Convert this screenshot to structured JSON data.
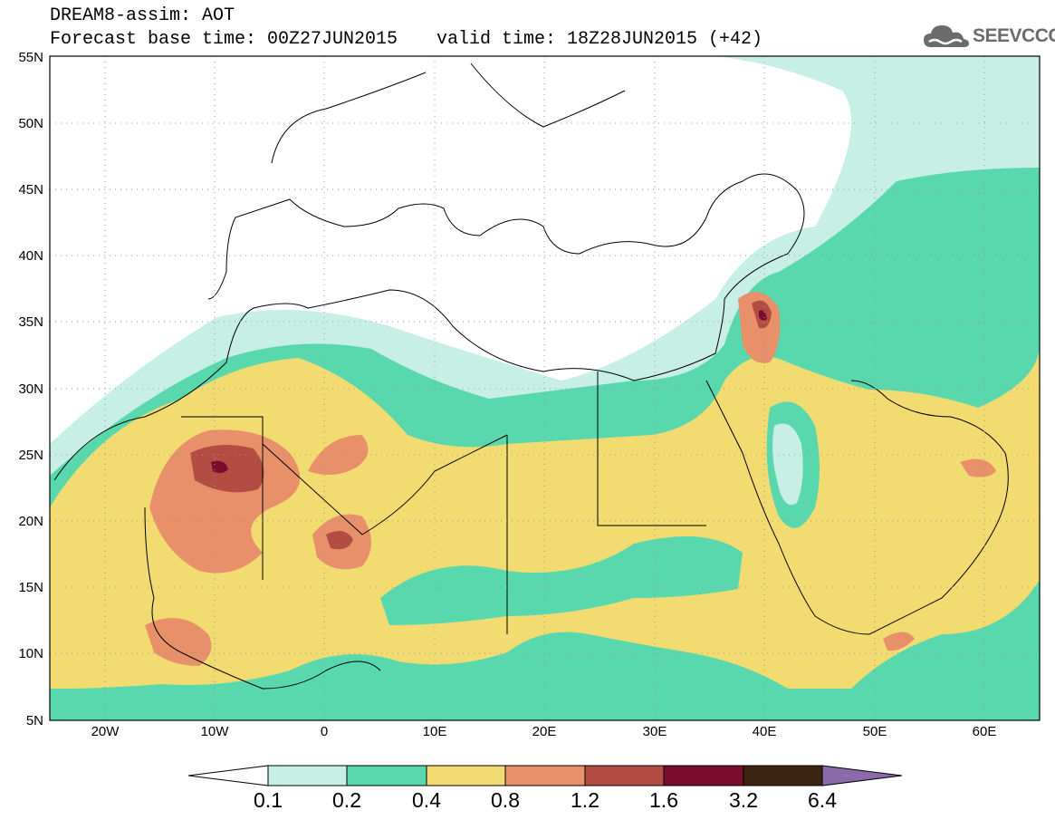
{
  "header": {
    "line1": "DREAM8-assim: AOT",
    "base_time": "Forecast base time: 00Z27JUN2015",
    "valid_time": "valid time: 18Z28JUN2015 (+42)"
  },
  "logo": {
    "text": "SEEVCCC",
    "icon": "cloud-logo-icon"
  },
  "map": {
    "lat_labels": [
      "55N",
      "50N",
      "45N",
      "40N",
      "35N",
      "30N",
      "25N",
      "20N",
      "15N",
      "10N",
      "5N"
    ],
    "lon_labels": [
      "20W",
      "10W",
      "0",
      "10E",
      "20E",
      "30E",
      "40E",
      "50E",
      "60E"
    ],
    "lon_range": [
      -25,
      65
    ],
    "lat_range": [
      5,
      55
    ]
  },
  "colorbar": {
    "labels": [
      "0.1",
      "0.2",
      "0.4",
      "0.8",
      "1.2",
      "1.6",
      "3.2",
      "6.4"
    ],
    "colors": [
      "#c7efe6",
      "#5ad8ad",
      "#f2dc72",
      "#e8906a",
      "#b34d44",
      "#7a0c2e",
      "#3c2412",
      "#8a6aa8"
    ]
  }
}
